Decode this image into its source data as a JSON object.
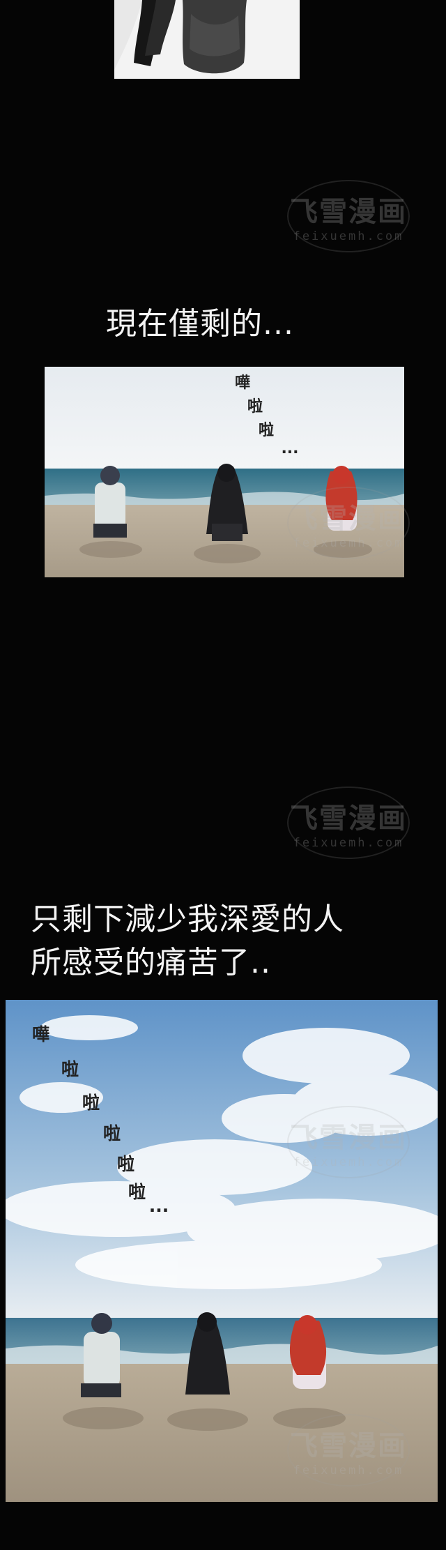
{
  "captions": {
    "line1": "現在僅剩的...",
    "line2": "只剩下減少我深愛的人",
    "line3": "所感受的痛苦了.."
  },
  "panel2_sfx": {
    "c1": "嘩",
    "c2": "啦",
    "c3": "啦",
    "dots": "..."
  },
  "panel3_sfx": {
    "c1": "嘩",
    "c2": "啦",
    "c3": "啦",
    "c4": "啦",
    "c5": "啦",
    "c6": "啦",
    "dots": "..."
  },
  "watermark": {
    "main": "飞雪漫画",
    "sub": "feixuemh.com"
  },
  "colors": {
    "background": "#050505",
    "caption_text": "#f4f4f4",
    "sky_top": "#6f9fd0",
    "sea": "#4d7f95",
    "sand": "#b9ad9b"
  }
}
